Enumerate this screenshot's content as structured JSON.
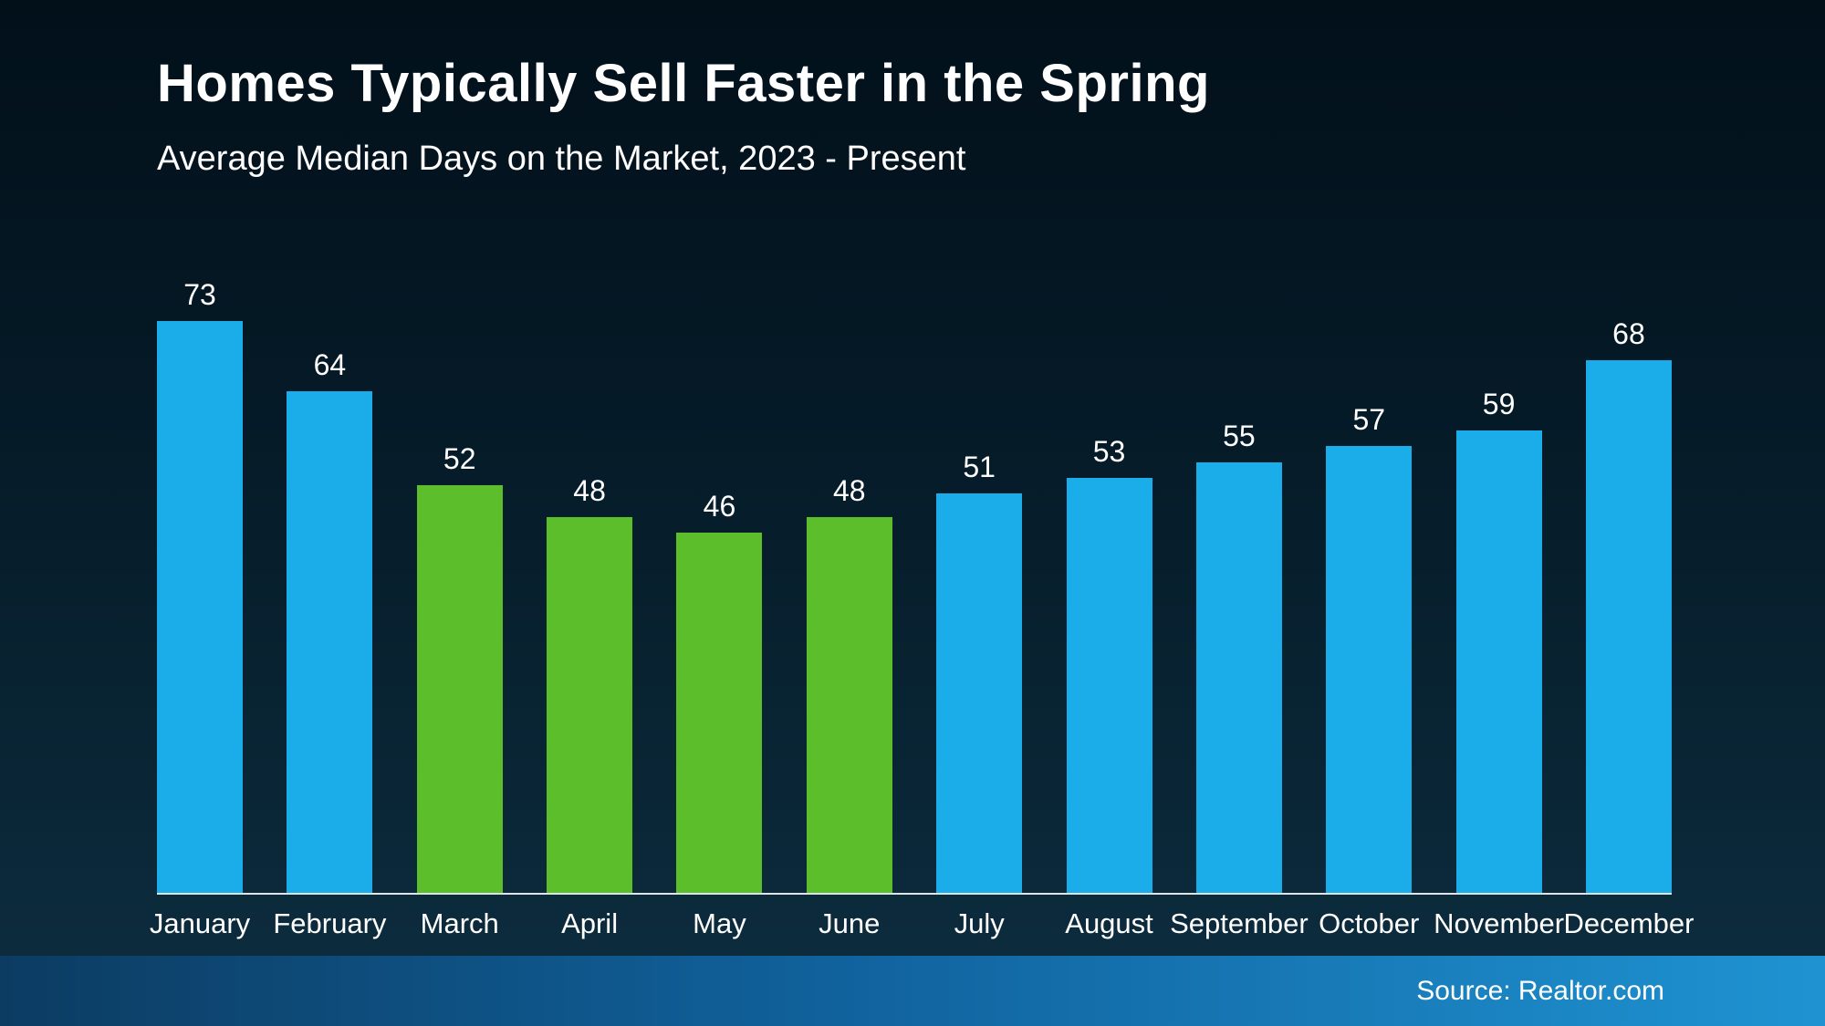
{
  "header": {
    "title": "Homes Typically Sell Faster in the Spring",
    "subtitle": "Average Median Days on the Market, 2023 - Present"
  },
  "footer": {
    "source": "Source: Realtor.com"
  },
  "chart_data": {
    "type": "bar",
    "title": "Homes Typically Sell Faster in the Spring",
    "subtitle": "Average Median Days on the Market, 2023 - Present",
    "categories": [
      "January",
      "February",
      "March",
      "April",
      "May",
      "June",
      "July",
      "August",
      "September",
      "October",
      "November",
      "December"
    ],
    "values": [
      73,
      64,
      52,
      48,
      46,
      48,
      51,
      53,
      55,
      57,
      59,
      68
    ],
    "highlighted_categories": [
      "March",
      "April",
      "May",
      "June"
    ],
    "colors": {
      "bar_default": "#1badea",
      "bar_highlight": "#5cbe2b",
      "value_label": "#ffffff",
      "axis_line": "#dfe4e8",
      "background_top": "#02101a",
      "background_bottom": "#0d2e40"
    },
    "ylim": [
      0,
      73
    ],
    "grid": false,
    "legend": false,
    "value_labels": "above bars",
    "xlabel": "",
    "ylabel": ""
  }
}
